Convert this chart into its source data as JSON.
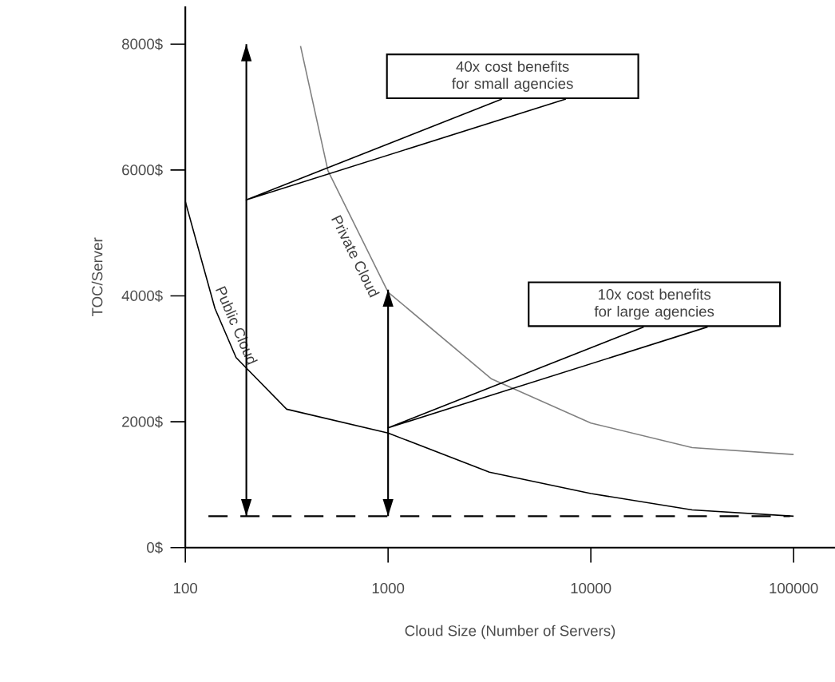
{
  "chart_data": {
    "type": "line",
    "xlabel": "Cloud Size (Number of Servers)",
    "ylabel": "TOC/Server",
    "log": "x",
    "xlim": [
      100,
      160000
    ],
    "xticks": [
      100,
      1000,
      10000,
      100000
    ],
    "ylim": [
      0,
      8600
    ],
    "yticks": [
      {
        "value": 0,
        "label": "0$"
      },
      {
        "value": 2000,
        "label": "2000$"
      },
      {
        "value": 4000,
        "label": "4000$"
      },
      {
        "value": 6000,
        "label": "6000$"
      },
      {
        "value": 8000,
        "label": "8000$"
      }
    ],
    "grid": false,
    "marker": "none",
    "series": [
      {
        "name": "Public Cloud",
        "color": "#000000",
        "x": [
          100,
          140,
          178,
          316,
          1000,
          3160,
          10000,
          31600,
          100000
        ],
        "values": [
          5500,
          3800,
          3020,
          2200,
          1820,
          1200,
          860,
          600,
          500
        ]
      },
      {
        "name": "Private Cloud",
        "color": "#808080",
        "x": [
          370,
          505,
          1000,
          3240,
          10000,
          31600,
          100000
        ],
        "values": [
          7970,
          5990,
          4060,
          2680,
          1980,
          1590,
          1480
        ]
      },
      {
        "color": "#000000",
        "x": [
          200,
          200
        ],
        "values": [
          500,
          8000
        ]
      },
      {
        "color": "#000000",
        "x": [
          1000,
          1000
        ],
        "values": [
          500,
          4100
        ]
      }
    ],
    "ref_lines": [
      {
        "axis": "y",
        "value": 500,
        "color": "#000000",
        "line_style": "dashed"
      }
    ],
    "annotations": [
      "40x cost benefits for small agencies",
      "10x cost benefits for large agencies"
    ]
  }
}
